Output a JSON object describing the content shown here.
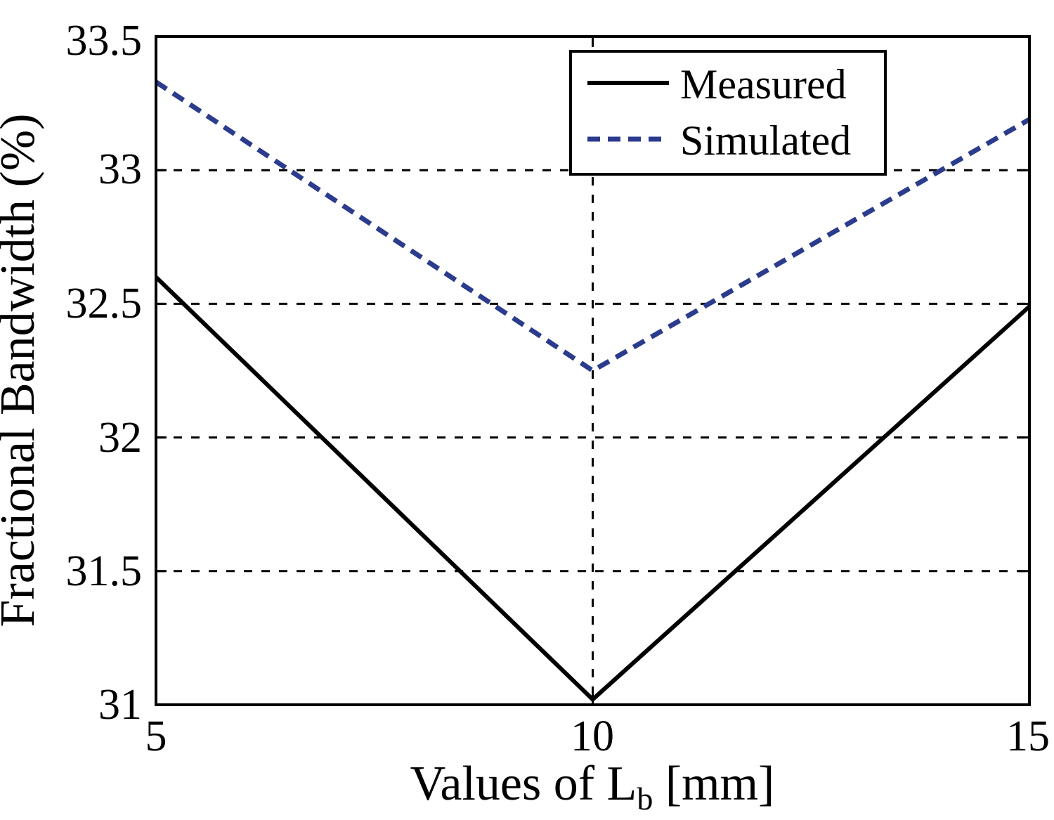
{
  "chart_data": {
    "type": "line",
    "title": "",
    "xlabel_parts": {
      "pre": "Values of L",
      "sub": "b",
      "post": " [mm]"
    },
    "ylabel": "Fractional Bandwidth (%)",
    "x": [
      5,
      10,
      15
    ],
    "series": [
      {
        "name": "Measured",
        "values": [
          32.6,
          31.02,
          32.49
        ],
        "color": "#000000",
        "style": "solid"
      },
      {
        "name": "Simulated",
        "values": [
          33.33,
          32.25,
          33.19
        ],
        "color": "#2b3b8d",
        "style": "dashed"
      }
    ],
    "xlim": [
      5,
      15
    ],
    "ylim": [
      31,
      33.5
    ],
    "xticks": [
      5,
      10,
      15
    ],
    "xtick_labels": [
      "5",
      "10",
      "15"
    ],
    "yticks": [
      31,
      31.5,
      32,
      32.5,
      33,
      33.5
    ],
    "ytick_labels": [
      "31",
      "31.5",
      "32",
      "32.5",
      "33",
      "33.5"
    ],
    "grid": {
      "horizontal": [
        31.5,
        32,
        32.5,
        33
      ],
      "vertical": [
        10
      ],
      "style": "dashed"
    },
    "legend": {
      "position": "top-center-right",
      "entries": [
        "Measured",
        "Simulated"
      ]
    },
    "colors": {
      "frame": "#000000",
      "grid": "#000000",
      "background": "#ffffff",
      "simulated_blue": "#2b3b8d"
    }
  }
}
